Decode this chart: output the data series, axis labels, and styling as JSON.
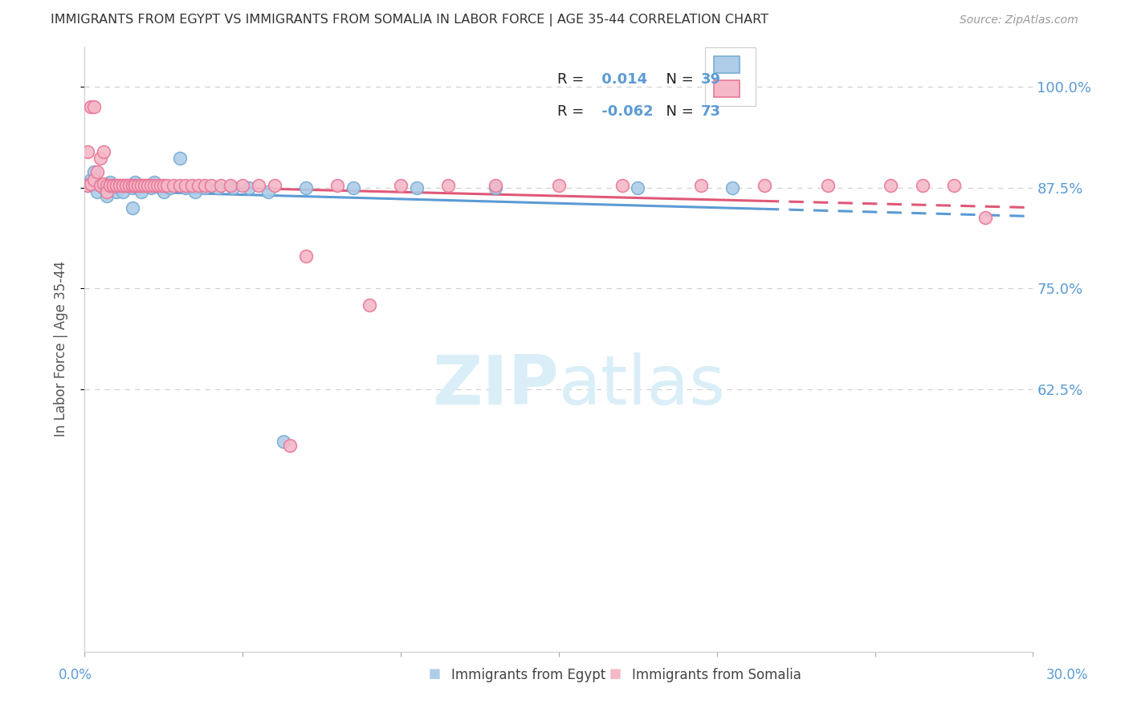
{
  "title": "IMMIGRANTS FROM EGYPT VS IMMIGRANTS FROM SOMALIA IN LABOR FORCE | AGE 35-44 CORRELATION CHART",
  "source": "Source: ZipAtlas.com",
  "ylabel": "In Labor Force | Age 35-44",
  "xlim": [
    0.0,
    0.3
  ],
  "ylim": [
    0.3,
    1.05
  ],
  "ytick_vals": [
    0.625,
    0.75,
    0.875,
    1.0
  ],
  "ytick_labels": [
    "62.5%",
    "75.0%",
    "87.5%",
    "100.0%"
  ],
  "egypt_color": "#aecde8",
  "egypt_edge": "#7aadd4",
  "somalia_color": "#f5b8c8",
  "somalia_edge": "#e87898",
  "egypt_trend_color": "#5b9bd5",
  "somalia_trend_color": "#e05878",
  "egypt_R": "0.014",
  "egypt_N": "39",
  "somalia_R": "-0.062",
  "somalia_N": "73",
  "watermark": "ZIPatlas",
  "watermark_color": "#daeef8",
  "label_color": "#5b9bd5",
  "grid_color": "#d0d0d0",
  "egypt_x": [
    0.001,
    0.002,
    0.003,
    0.004,
    0.005,
    0.006,
    0.007,
    0.008,
    0.009,
    0.01,
    0.011,
    0.012,
    0.013,
    0.015,
    0.016,
    0.017,
    0.018,
    0.02,
    0.021,
    0.022,
    0.024,
    0.025,
    0.027,
    0.03,
    0.032,
    0.035,
    0.038,
    0.042,
    0.047,
    0.052,
    0.058,
    0.063,
    0.07,
    0.085,
    0.105,
    0.13,
    0.175,
    0.205,
    0.015
  ],
  "egypt_y": [
    0.878,
    0.885,
    0.895,
    0.87,
    0.878,
    0.875,
    0.865,
    0.882,
    0.875,
    0.87,
    0.875,
    0.87,
    0.878,
    0.875,
    0.882,
    0.875,
    0.87,
    0.878,
    0.875,
    0.882,
    0.875,
    0.87,
    0.875,
    0.912,
    0.875,
    0.87,
    0.875,
    0.875,
    0.875,
    0.875,
    0.87,
    0.56,
    0.875,
    0.875,
    0.875,
    0.875,
    0.875,
    0.875,
    0.85
  ],
  "somalia_x": [
    0.001,
    0.001,
    0.002,
    0.002,
    0.003,
    0.003,
    0.004,
    0.005,
    0.005,
    0.006,
    0.006,
    0.007,
    0.007,
    0.008,
    0.008,
    0.009,
    0.009,
    0.01,
    0.01,
    0.011,
    0.011,
    0.012,
    0.012,
    0.013,
    0.013,
    0.014,
    0.014,
    0.015,
    0.015,
    0.016,
    0.016,
    0.017,
    0.017,
    0.018,
    0.018,
    0.019,
    0.019,
    0.02,
    0.02,
    0.021,
    0.022,
    0.023,
    0.024,
    0.025,
    0.026,
    0.028,
    0.03,
    0.032,
    0.034,
    0.036,
    0.038,
    0.04,
    0.043,
    0.046,
    0.05,
    0.055,
    0.06,
    0.065,
    0.07,
    0.08,
    0.09,
    0.1,
    0.115,
    0.13,
    0.15,
    0.17,
    0.195,
    0.215,
    0.235,
    0.255,
    0.265,
    0.275,
    0.285
  ],
  "somalia_y": [
    0.878,
    0.92,
    0.975,
    0.88,
    0.975,
    0.885,
    0.895,
    0.912,
    0.878,
    0.88,
    0.92,
    0.878,
    0.87,
    0.878,
    0.878,
    0.878,
    0.878,
    0.878,
    0.878,
    0.878,
    0.878,
    0.878,
    0.878,
    0.878,
    0.878,
    0.878,
    0.878,
    0.878,
    0.878,
    0.878,
    0.878,
    0.878,
    0.878,
    0.878,
    0.878,
    0.878,
    0.878,
    0.878,
    0.878,
    0.878,
    0.878,
    0.878,
    0.878,
    0.878,
    0.878,
    0.878,
    0.878,
    0.878,
    0.878,
    0.878,
    0.878,
    0.878,
    0.878,
    0.878,
    0.878,
    0.878,
    0.878,
    0.555,
    0.79,
    0.878,
    0.73,
    0.878,
    0.878,
    0.878,
    0.878,
    0.878,
    0.878,
    0.878,
    0.878,
    0.878,
    0.878,
    0.878,
    0.838
  ]
}
